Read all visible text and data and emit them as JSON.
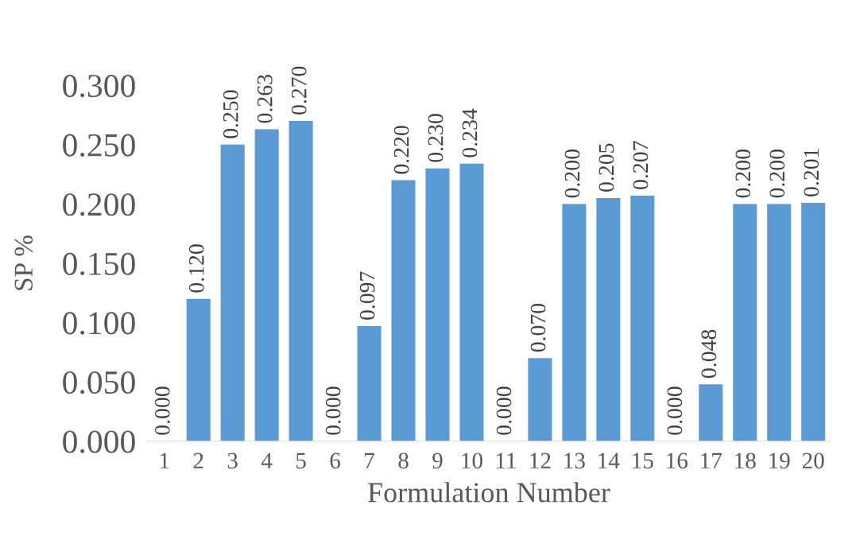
{
  "chart_data": {
    "type": "bar",
    "xlabel": "Formulation Number",
    "ylabel": "SP %",
    "categories": [
      "1",
      "2",
      "3",
      "4",
      "5",
      "6",
      "7",
      "8",
      "9",
      "10",
      "11",
      "12",
      "13",
      "14",
      "15",
      "16",
      "17",
      "18",
      "19",
      "20"
    ],
    "values": [
      0,
      0.12,
      0.25,
      0.263,
      0.27,
      0,
      0.097,
      0.22,
      0.23,
      0.234,
      0,
      0.07,
      0.2,
      0.205,
      0.207,
      0,
      0.048,
      0.2,
      0.2,
      0.201
    ],
    "value_labels": [
      "0.000",
      "0.120",
      "0.250",
      "0.263",
      "0.270",
      "0.000",
      "0.097",
      "0.220",
      "0.230",
      "0.234",
      "0.000",
      "0.070",
      "0.200",
      "0.205",
      "0.207",
      "0.000",
      "0.048",
      "0.200",
      "0.200",
      "0.201"
    ],
    "color": "#5b9bd5",
    "ylim": [
      0,
      0.3
    ],
    "yticks": [
      {
        "value": 0,
        "label": "0.000"
      },
      {
        "value": 0.05,
        "label": "0.050"
      },
      {
        "value": 0.1,
        "label": "0.100"
      },
      {
        "value": 0.15,
        "label": "0.150"
      },
      {
        "value": 0.2,
        "label": "0.200"
      },
      {
        "value": 0.25,
        "label": "0.250"
      },
      {
        "value": 0.3,
        "label": "0.300"
      }
    ],
    "grid": false,
    "legend": false
  }
}
